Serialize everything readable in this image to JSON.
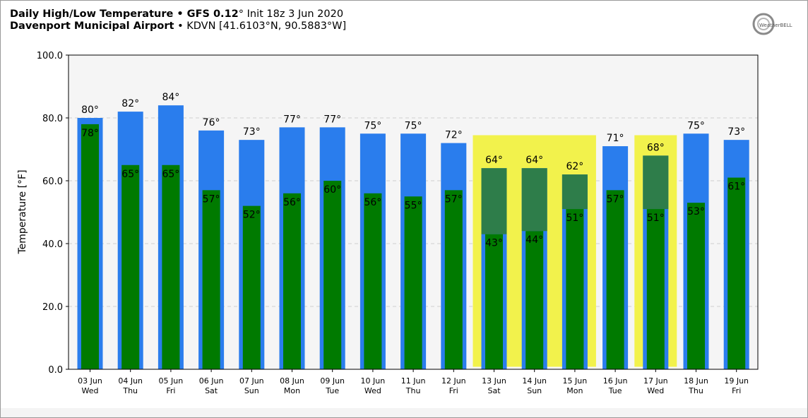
{
  "header": {
    "line1_bold": "Daily High/Low Temperature • GFS 0.12",
    "line1_degree": "°",
    "line1_rest": " Init 18z 3 Jun 2020",
    "line2_bold": "Davenport Municipal Airport",
    "line2_rest": " • KDVN [41.6103°N, 90.5883°W]"
  },
  "logo": {
    "text": "WeatherBELL",
    "icon": "weatherbell-logo-icon"
  },
  "colors": {
    "high": "#2a7ded",
    "low": "#007a00",
    "highlight": "#f2f24c",
    "plot_bg": "#f5f5f5",
    "grid": "#d0d0d0"
  },
  "chart_data": {
    "type": "bar",
    "ylabel": "Temperature [°F]",
    "ylim": [
      0,
      100
    ],
    "yticks": [
      "0.0",
      "20.0",
      "40.0",
      "60.0",
      "80.0",
      "100.0"
    ],
    "grid": "horizontal dashed",
    "categories": [
      "03 Jun",
      "04 Jun",
      "05 Jun",
      "06 Jun",
      "07 Jun",
      "08 Jun",
      "09 Jun",
      "10 Jun",
      "11 Jun",
      "12 Jun",
      "13 Jun",
      "14 Jun",
      "15 Jun",
      "16 Jun",
      "17 Jun",
      "18 Jun",
      "19 Jun"
    ],
    "weekdays": [
      "Wed",
      "Thu",
      "Fri",
      "Sat",
      "Sun",
      "Mon",
      "Tue",
      "Wed",
      "Thu",
      "Fri",
      "Sat",
      "Sun",
      "Mon",
      "Tue",
      "Wed",
      "Thu",
      "Fri"
    ],
    "series": [
      {
        "key": "high",
        "values": [
          80,
          82,
          84,
          76,
          73,
          77,
          77,
          75,
          75,
          72,
          64,
          64,
          62,
          71,
          68,
          75,
          73
        ]
      },
      {
        "key": "low",
        "values": [
          78,
          65,
          65,
          57,
          52,
          56,
          60,
          56,
          55,
          57,
          43,
          44,
          51,
          57,
          51,
          53,
          61
        ]
      }
    ],
    "high_labels": [
      "80°",
      "82°",
      "84°",
      "76°",
      "73°",
      "77°",
      "77°",
      "75°",
      "75°",
      "72°",
      "64°",
      "64°",
      "62°",
      "71°",
      "68°",
      "75°",
      "73°"
    ],
    "low_labels": [
      "78°",
      "65°",
      "65°",
      "57°",
      "52°",
      "56°",
      "60°",
      "56°",
      "55°",
      "57°",
      "43°",
      "44°",
      "51°",
      "57°",
      "51°",
      "53°",
      "61°"
    ],
    "highlighted_ranges": [
      {
        "from": "13 Jun",
        "to": "15 Jun"
      },
      {
        "from": "17 Jun",
        "to": "17 Jun"
      }
    ]
  }
}
